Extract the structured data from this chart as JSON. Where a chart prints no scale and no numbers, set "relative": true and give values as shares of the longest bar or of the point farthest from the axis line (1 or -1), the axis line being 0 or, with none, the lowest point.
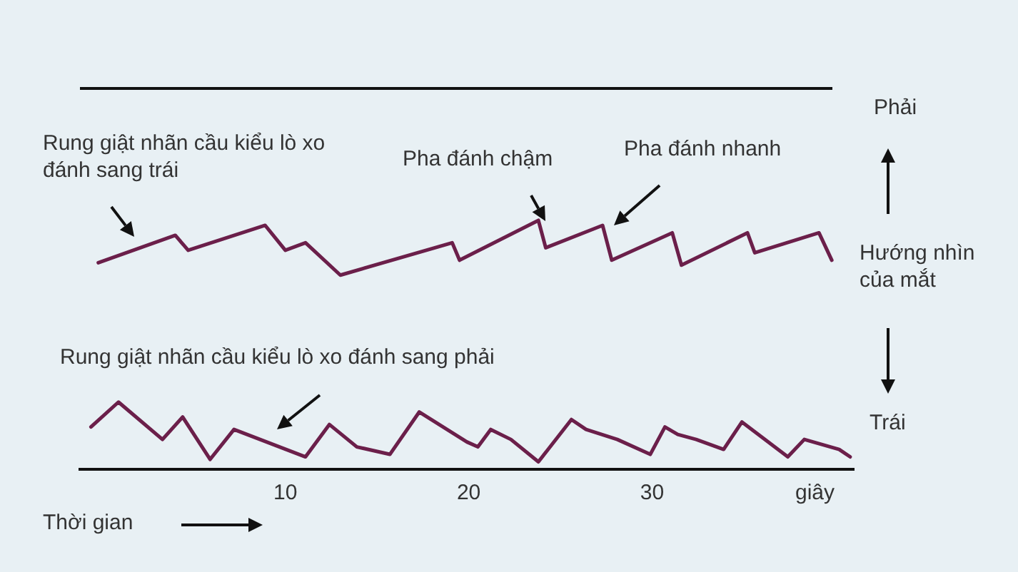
{
  "chart_data": {
    "type": "line",
    "relative": true,
    "xlabel": "Thời gian",
    "ylabel": "Hướng nhìn của mắt",
    "xlim": [
      -1.2,
      41
    ],
    "xticks": [
      10,
      20,
      30
    ],
    "grid": false,
    "legend": false,
    "marker": "none",
    "line_style": "solid",
    "series": [
      {
        "color": "#6b1f4a",
        "x": [
          -0.2,
          4.0,
          4.7,
          8.9,
          10.0,
          11.1,
          13.0,
          19.1,
          19.5,
          23.8,
          24.2,
          27.3,
          27.8,
          31.1,
          31.6,
          35.2,
          35.6,
          39.1,
          39.8
        ],
        "values": [
          0.83,
          0.94,
          0.88,
          0.98,
          0.88,
          0.91,
          0.78,
          0.91,
          0.84,
          1,
          0.89,
          0.98,
          0.84,
          0.95,
          0.82,
          0.95,
          0.87,
          0.95,
          0.84
        ]
      },
      {
        "color": "#6b1f4a",
        "x": [
          -0.6,
          0.9,
          3.3,
          4.4,
          5.9,
          7.2,
          11.1,
          12.4,
          13.9,
          15.7,
          17.3,
          19.9,
          20.5,
          21.2,
          22.3,
          23.8,
          25.6,
          26.4,
          28.1,
          29.9,
          30.7,
          31.4,
          32.4,
          33.9,
          34.9,
          37.4,
          38.3,
          40.2,
          40.8
        ],
        "values": [
          0.17,
          0.27,
          0.12,
          0.21,
          0.04,
          0.16,
          0.05,
          0.18,
          0.09,
          0.06,
          0.23,
          0.11,
          0.09,
          0.16,
          0.12,
          0.03,
          0.2,
          0.16,
          0.12,
          0.06,
          0.17,
          0.14,
          0.12,
          0.08,
          0.19,
          0.05,
          0.12,
          0.08,
          0.05
        ]
      }
    ],
    "annotations": [
      "Rung giật nhãn cầu kiểu lò xo đánh sang trái",
      "Pha đánh chậm",
      "Pha đánh nhanh",
      "Rung giật nhãn cầu kiểu lò xo đánh sang phải",
      "Phải",
      "Trái",
      "giây"
    ]
  }
}
